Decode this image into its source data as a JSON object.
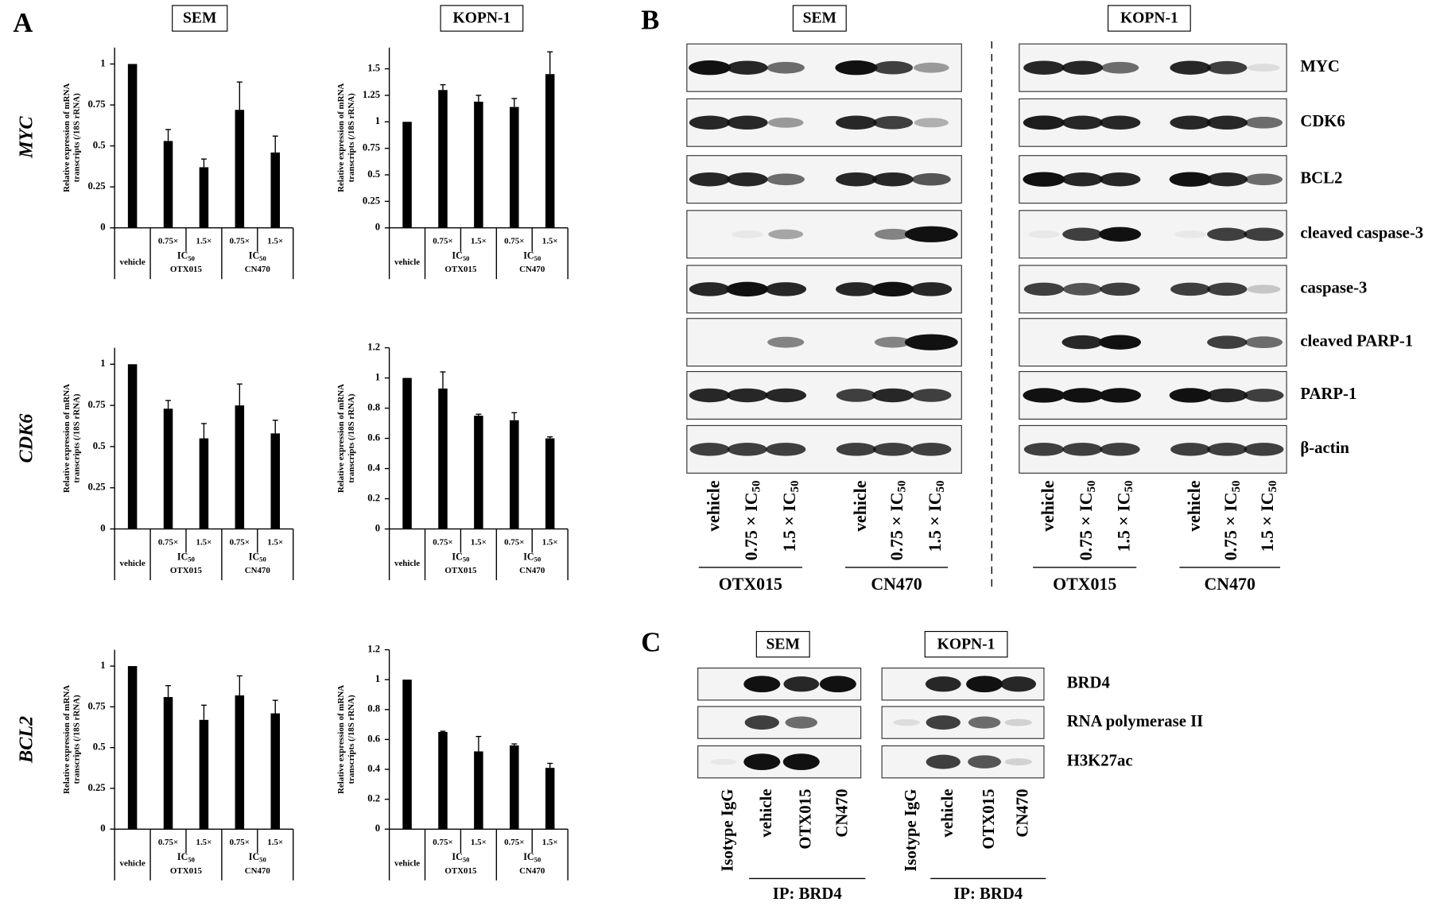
{
  "panel_a": {
    "label": "A",
    "columns": [
      "SEM",
      "KOPN-1"
    ],
    "rows": [
      "MYC",
      "CDK6",
      "BCL2"
    ]
  },
  "chart_data": [
    {
      "type": "bar",
      "y_label": [
        "Relative expression of mRNA",
        "transcripts (/18S rRNA)"
      ],
      "categories": [
        "vehicle",
        "0.75×",
        "1.5×",
        "0.75×",
        "1.5×"
      ],
      "groups": [
        {
          "label": "IC",
          "sub": "50",
          "drug": "OTX015"
        },
        {
          "label": "IC",
          "sub": "50",
          "drug": "CN470"
        }
      ],
      "values": [
        1,
        0.53,
        0.37,
        0.72,
        0.46
      ],
      "errors": [
        0,
        0.07,
        0.05,
        0.17,
        0.1
      ],
      "color": "#000000",
      "ylim": [
        0,
        1.1
      ],
      "yticks": [
        0,
        0.25,
        0.5,
        0.75,
        1
      ]
    },
    {
      "type": "bar",
      "y_label": [
        "Relative expression of mRNA",
        "transcripts (/18S rRNA)"
      ],
      "categories": [
        "vehicle",
        "0.75×",
        "1.5×",
        "0.75×",
        "1.5×"
      ],
      "groups": [
        {
          "label": "IC",
          "sub": "50",
          "drug": "OTX015"
        },
        {
          "label": "IC",
          "sub": "50",
          "drug": "CN470"
        }
      ],
      "values": [
        1,
        1.3,
        1.19,
        1.14,
        1.45
      ],
      "errors": [
        0,
        0.05,
        0.06,
        0.08,
        0.21
      ],
      "color": "#000000",
      "ylim": [
        0,
        1.7
      ],
      "yticks": [
        0,
        0.25,
        0.5,
        0.75,
        1,
        1.25,
        1.5
      ]
    },
    {
      "type": "bar",
      "y_label": [
        "Relative expression of mRNA",
        "transcripts (/18S rRNA)"
      ],
      "categories": [
        "vehicle",
        "0.75×",
        "1.5×",
        "0.75×",
        "1.5×"
      ],
      "groups": [
        {
          "label": "IC",
          "sub": "50",
          "drug": "OTX015"
        },
        {
          "label": "IC",
          "sub": "50",
          "drug": "CN470"
        }
      ],
      "values": [
        1,
        0.73,
        0.55,
        0.75,
        0.58
      ],
      "errors": [
        0,
        0.05,
        0.09,
        0.13,
        0.08
      ],
      "color": "#000000",
      "ylim": [
        0,
        1.1
      ],
      "yticks": [
        0,
        0.25,
        0.5,
        0.75,
        1
      ]
    },
    {
      "type": "bar",
      "y_label": [
        "Relative expression of mRNA",
        "transcripts (/18S rRNA)"
      ],
      "categories": [
        "vehicle",
        "0.75×",
        "1.5×",
        "0.75×",
        "1.5×"
      ],
      "groups": [
        {
          "label": "IC",
          "sub": "50",
          "drug": "OTX015"
        },
        {
          "label": "IC",
          "sub": "50",
          "drug": "CN470"
        }
      ],
      "values": [
        1,
        0.93,
        0.75,
        0.72,
        0.6
      ],
      "errors": [
        0,
        0.11,
        0.01,
        0.05,
        0.01
      ],
      "color": "#000000",
      "ylim": [
        0,
        1.2
      ],
      "yticks": [
        0,
        0.2,
        0.4,
        0.6,
        0.8,
        1,
        1.2
      ]
    },
    {
      "type": "bar",
      "y_label": [
        "Relative expression of mRNA",
        "transcripts (/18S rRNA)"
      ],
      "categories": [
        "vehicle",
        "0.75×",
        "1.5×",
        "0.75×",
        "1.5×"
      ],
      "groups": [
        {
          "label": "IC",
          "sub": "50",
          "drug": "OTX015"
        },
        {
          "label": "IC",
          "sub": "50",
          "drug": "CN470"
        }
      ],
      "values": [
        1,
        0.81,
        0.67,
        0.82,
        0.71
      ],
      "errors": [
        0,
        0.07,
        0.09,
        0.12,
        0.08
      ],
      "color": "#000000",
      "ylim": [
        0,
        1.1
      ],
      "yticks": [
        0,
        0.25,
        0.5,
        0.75,
        1
      ]
    },
    {
      "type": "bar",
      "y_label": [
        "Relative expression of mRNA",
        "transcripts (/18S rRNA)"
      ],
      "categories": [
        "vehicle",
        "0.75×",
        "1.5×",
        "0.75×",
        "1.5×"
      ],
      "groups": [
        {
          "label": "IC",
          "sub": "50",
          "drug": "OTX015"
        },
        {
          "label": "IC",
          "sub": "50",
          "drug": "CN470"
        }
      ],
      "values": [
        1,
        0.65,
        0.52,
        0.56,
        0.41
      ],
      "errors": [
        0,
        0.005,
        0.1,
        0.01,
        0.03
      ],
      "color": "#000000",
      "ylim": [
        0,
        1.2
      ],
      "yticks": [
        0,
        0.2,
        0.4,
        0.6,
        0.8,
        1,
        1.2
      ]
    }
  ],
  "panel_b": {
    "label": "B",
    "cell_lines": [
      "SEM",
      "KOPN-1"
    ],
    "proteins": [
      "MYC",
      "CDK6",
      "BCL2",
      "cleaved caspase-3",
      "caspase-3",
      "cleaved PARP-1",
      "PARP-1",
      "β-actin"
    ],
    "lanes": [
      {
        "text": "vehicle"
      },
      {
        "text": "0.75 × IC",
        "sub": "50"
      },
      {
        "text": "1.5 × IC",
        "sub": "50"
      }
    ],
    "drugs": [
      "OTX015",
      "CN470"
    ]
  },
  "panel_c": {
    "label": "C",
    "cell_lines": [
      "SEM",
      "KOPN-1"
    ],
    "proteins": [
      "BRD4",
      "RNA polymerase II",
      "H3K27ac"
    ],
    "lanes": [
      "Isotype IgG",
      "vehicle",
      "OTX015",
      "CN470"
    ],
    "ip": "IP: BRD4"
  }
}
